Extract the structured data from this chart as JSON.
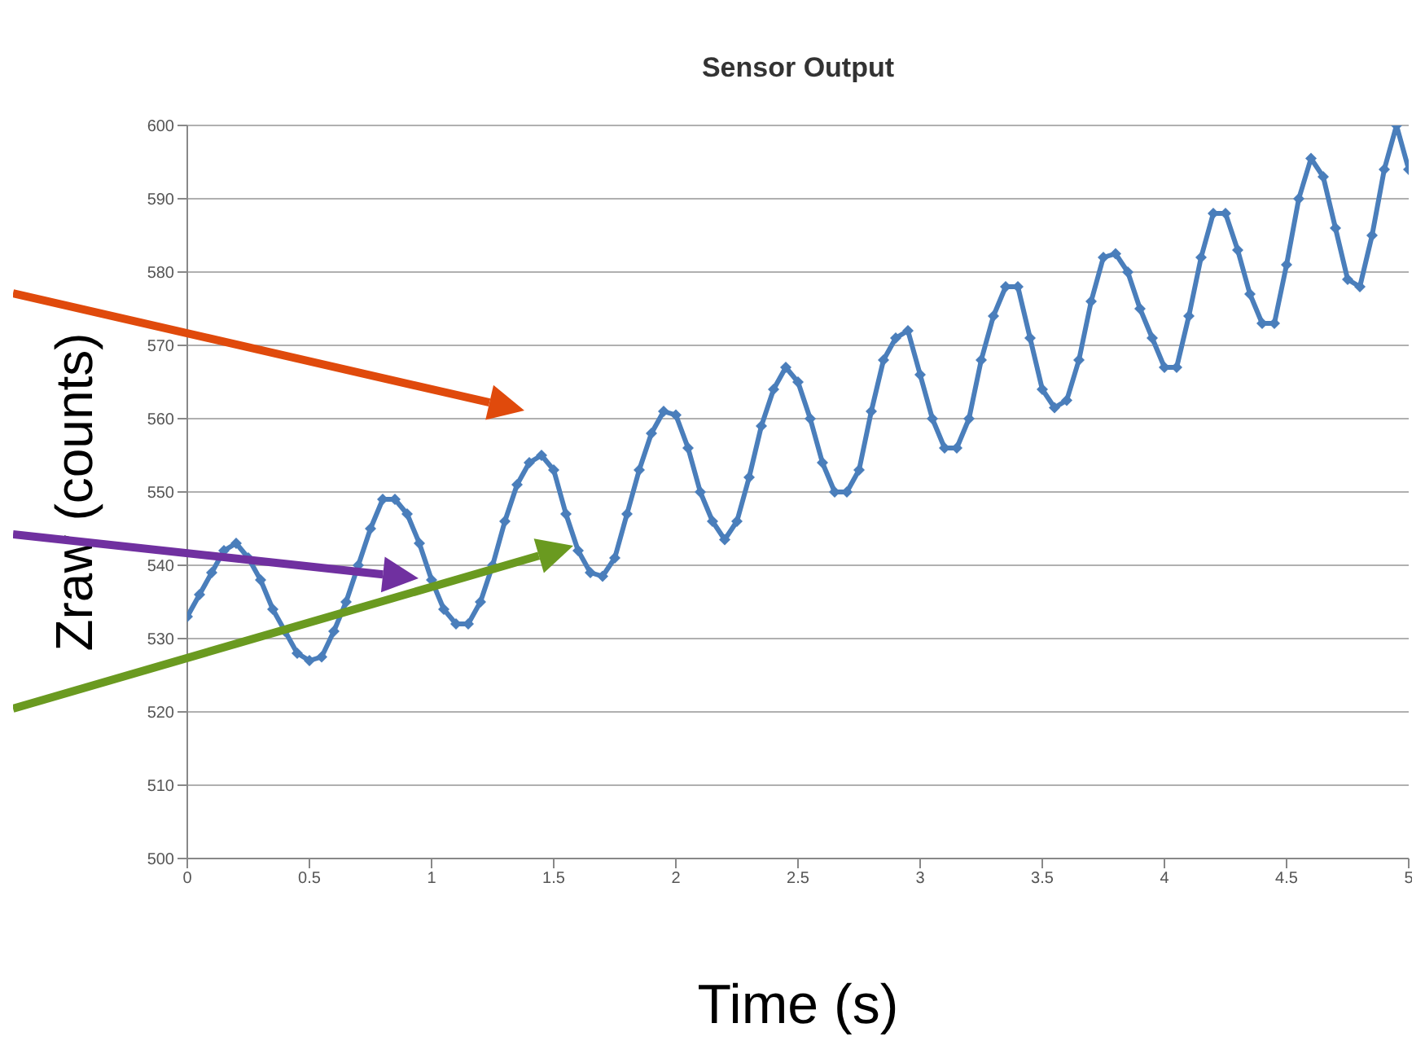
{
  "chart_data": {
    "type": "line",
    "title": "Sensor Output",
    "xlabel": "Time (s)",
    "ylabel": "Zraw (counts)",
    "x": [
      0,
      0.05,
      0.1,
      0.15,
      0.2,
      0.25,
      0.3,
      0.35,
      0.4,
      0.45,
      0.5,
      0.55,
      0.6,
      0.65,
      0.7,
      0.75,
      0.8,
      0.85,
      0.9,
      0.95,
      1.0,
      1.05,
      1.1,
      1.15,
      1.2,
      1.25,
      1.3,
      1.35,
      1.4,
      1.45,
      1.5,
      1.55,
      1.6,
      1.65,
      1.7,
      1.75,
      1.8,
      1.85,
      1.9,
      1.95,
      2.0,
      2.05,
      2.1,
      2.15,
      2.2,
      2.25,
      2.3,
      2.35,
      2.4,
      2.45,
      2.5,
      2.55,
      2.6,
      2.65,
      2.7,
      2.75,
      2.8,
      2.85,
      2.9,
      2.95,
      3.0,
      3.05,
      3.1,
      3.15,
      3.2,
      3.25,
      3.3,
      3.35,
      3.4,
      3.45,
      3.5,
      3.55,
      3.6,
      3.65,
      3.7,
      3.75,
      3.8,
      3.85,
      3.9,
      3.95,
      4.0,
      4.05,
      4.1,
      4.15,
      4.2,
      4.25,
      4.3,
      4.35,
      4.4,
      4.45,
      4.5,
      4.55,
      4.6,
      4.65,
      4.7,
      4.75,
      4.8,
      4.85,
      4.9,
      4.95,
      5.0
    ],
    "series": [
      {
        "color": "#4a7ebb",
        "values": [
          533,
          536,
          539,
          542,
          543,
          541,
          538,
          534,
          531,
          528,
          527,
          527.5,
          531,
          535,
          540,
          545,
          549,
          549,
          547,
          543,
          538,
          534,
          532,
          532,
          535,
          540,
          546,
          551,
          554,
          555,
          553,
          547,
          542,
          539,
          538.5,
          541,
          547,
          553,
          558,
          561,
          560.5,
          556,
          550,
          546,
          543.5,
          546,
          552,
          559,
          564,
          567,
          565,
          560,
          554,
          550,
          550,
          553,
          561,
          568,
          571,
          572,
          566,
          560,
          556,
          556,
          560,
          568,
          574,
          578,
          578,
          571,
          564,
          561.5,
          562.5,
          568,
          576,
          582,
          582.5,
          580,
          575,
          571,
          567,
          567,
          574,
          582,
          588,
          588,
          583,
          577,
          573,
          573,
          581,
          590,
          595.5,
          593,
          586,
          579,
          578,
          585,
          594,
          600,
          594
        ]
      }
    ],
    "xlim": [
      0,
      5
    ],
    "xticks": [
      0,
      0.5,
      1,
      1.5,
      2,
      2.5,
      3,
      3.5,
      4,
      4.5,
      5
    ],
    "ylim": [
      500,
      600
    ],
    "yticks": [
      500,
      510,
      520,
      530,
      540,
      550,
      560,
      570,
      580,
      590,
      600
    ],
    "grid": "y",
    "marker": "diamond",
    "line_style": "solid",
    "legend": false
  }
}
